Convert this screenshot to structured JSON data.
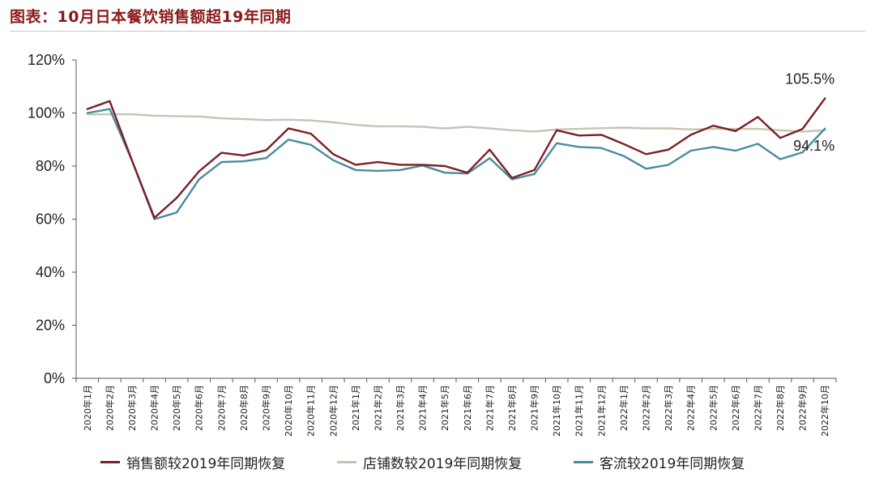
{
  "title": "图表：10月日本餐饮销售额超19年同期",
  "chart_data": {
    "type": "line",
    "title": "图表：10月日本餐饮销售额超19年同期",
    "xlabel": "",
    "ylabel": "",
    "ylim": [
      0,
      1.2
    ],
    "yticks": [
      "0%",
      "20%",
      "40%",
      "60%",
      "80%",
      "100%",
      "120%"
    ],
    "grid": false,
    "legend_position": "bottom",
    "categories": [
      "2020年1月",
      "2020年2月",
      "2020年3月",
      "2020年4月",
      "2020年5月",
      "2020年6月",
      "2020年7月",
      "2020年8月",
      "2020年9月",
      "2020年10月",
      "2020年11月",
      "2020年12月",
      "2021年1月",
      "2021年2月",
      "2021年3月",
      "2021年4月",
      "2021年5月",
      "2021年6月",
      "2021年7月",
      "2021年8月",
      "2021年9月",
      "2021年10月",
      "2021年11月",
      "2021年12月",
      "2022年1月",
      "2022年2月",
      "2022年3月",
      "2022年4月",
      "2022年5月",
      "2022年6月",
      "2022年7月",
      "2022年8月",
      "2022年9月",
      "2022年10月"
    ],
    "series": [
      {
        "name": "销售额较2019年同期恢复",
        "color": "#7b1f24",
        "values": [
          1.015,
          1.045,
          0.82,
          0.605,
          0.68,
          0.78,
          0.85,
          0.84,
          0.86,
          0.942,
          0.922,
          0.845,
          0.805,
          0.815,
          0.805,
          0.805,
          0.8,
          0.775,
          0.862,
          0.755,
          0.785,
          0.935,
          0.915,
          0.918,
          0.883,
          0.845,
          0.862,
          0.918,
          0.952,
          0.932,
          0.985,
          0.906,
          0.94,
          1.055
        ]
      },
      {
        "name": "店铺数较2019年同期恢复",
        "color": "#c5c4b4",
        "values": [
          0.995,
          0.995,
          0.995,
          0.99,
          0.988,
          0.987,
          0.98,
          0.977,
          0.973,
          0.975,
          0.972,
          0.965,
          0.955,
          0.95,
          0.95,
          0.948,
          0.942,
          0.948,
          0.942,
          0.935,
          0.93,
          0.938,
          0.94,
          0.943,
          0.945,
          0.942,
          0.942,
          0.938,
          0.94,
          0.94,
          0.94,
          0.935,
          0.93,
          0.935
        ]
      },
      {
        "name": "客流较2019年同期恢复",
        "color": "#4a8b9c",
        "values": [
          1.0,
          1.015,
          0.82,
          0.6,
          0.625,
          0.75,
          0.815,
          0.818,
          0.83,
          0.9,
          0.88,
          0.822,
          0.785,
          0.782,
          0.785,
          0.802,
          0.775,
          0.772,
          0.83,
          0.75,
          0.77,
          0.886,
          0.872,
          0.868,
          0.838,
          0.79,
          0.805,
          0.858,
          0.872,
          0.858,
          0.884,
          0.826,
          0.852,
          0.941
        ]
      }
    ],
    "annotations": [
      {
        "text": "105.5%",
        "series": 0,
        "index": 33
      },
      {
        "text": "94.1%",
        "series": 2,
        "index": 33
      }
    ]
  }
}
